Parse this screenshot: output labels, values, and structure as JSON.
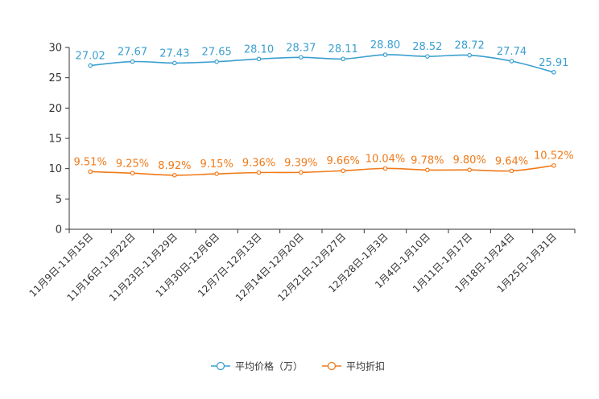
{
  "chart_data": {
    "type": "line",
    "title": "",
    "xlabel": "",
    "ylabel": "",
    "ylim": [
      0,
      30
    ],
    "yticks": [
      0,
      5,
      10,
      15,
      20,
      25,
      30
    ],
    "grid": false,
    "legend_position": "bottom-center",
    "categories": [
      "11月9日-11月15日",
      "11月16日-11月22日",
      "11月23日-11月29日",
      "11月30日-12月6日",
      "12月7日-12月13日",
      "12月14日-12月20日",
      "12月21日-12月27日",
      "12月28日-1月3日",
      "1月4日-1月10日",
      "1月11日-1月17日",
      "1月18日-1月24日",
      "1月25日-1月31日"
    ],
    "series": [
      {
        "name": "平均价格（万）",
        "color": "#3a9fd0",
        "values": [
          27.02,
          27.67,
          27.43,
          27.65,
          28.1,
          28.37,
          28.11,
          28.8,
          28.52,
          28.72,
          27.74,
          25.91
        ],
        "labels": [
          "27.02",
          "27.67",
          "27.43",
          "27.65",
          "28.10",
          "28.37",
          "28.11",
          "28.80",
          "28.52",
          "28.72",
          "27.74",
          "25.91"
        ]
      },
      {
        "name": "平均折扣",
        "color": "#f07a1a",
        "values": [
          9.51,
          9.25,
          8.92,
          9.15,
          9.36,
          9.39,
          9.66,
          10.04,
          9.78,
          9.8,
          9.64,
          10.52
        ],
        "labels": [
          "9.51%",
          "9.25%",
          "8.92%",
          "9.15%",
          "9.36%",
          "9.39%",
          "9.66%",
          "10.04%",
          "9.78%",
          "9.80%",
          "9.64%",
          "10.52%"
        ]
      }
    ]
  }
}
